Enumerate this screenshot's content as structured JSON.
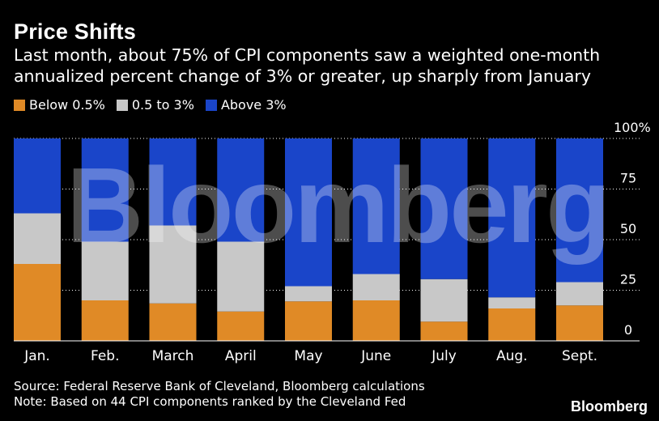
{
  "header": {
    "title": "Price Shifts",
    "subtitle": "Last month, about 75% of CPI components saw a weighted one-month annualized percent change of 3% or greater, up sharply from January"
  },
  "colors": {
    "below": "#e08a26",
    "mid": "#c8c8c8",
    "above": "#1a45c9",
    "grid": "#ffffff",
    "background": "#000000"
  },
  "chart_data": {
    "type": "bar",
    "stacked": true,
    "categories": [
      "Jan.",
      "Feb.",
      "March",
      "April",
      "May",
      "June",
      "July",
      "Aug.",
      "Sept."
    ],
    "series": [
      {
        "name": "Below 0.5%",
        "values": [
          38,
          20,
          18.5,
          14.5,
          19.5,
          20,
          9.5,
          16,
          17.5
        ]
      },
      {
        "name": "0.5 to 3%",
        "values": [
          25,
          29,
          38.5,
          34.5,
          7.5,
          13,
          21,
          5.5,
          11.5
        ]
      },
      {
        "name": "Above 3%",
        "values": [
          37,
          51,
          43,
          51,
          73,
          67,
          69.5,
          78.5,
          71
        ]
      }
    ],
    "y_ticks": [
      "0",
      "25",
      "50",
      "75",
      "100%"
    ],
    "y_tick_values": [
      0,
      25,
      50,
      75,
      100
    ],
    "ylim": [
      0,
      100
    ],
    "legend_position": "top-left"
  },
  "watermark": "Bloomberg",
  "footer": {
    "source": "Source: Federal Reserve Bank of Cleveland, Bloomberg calculations",
    "note": "Note: Based on 44 CPI components ranked by the Cleveland Fed",
    "brand": "Bloomberg"
  }
}
